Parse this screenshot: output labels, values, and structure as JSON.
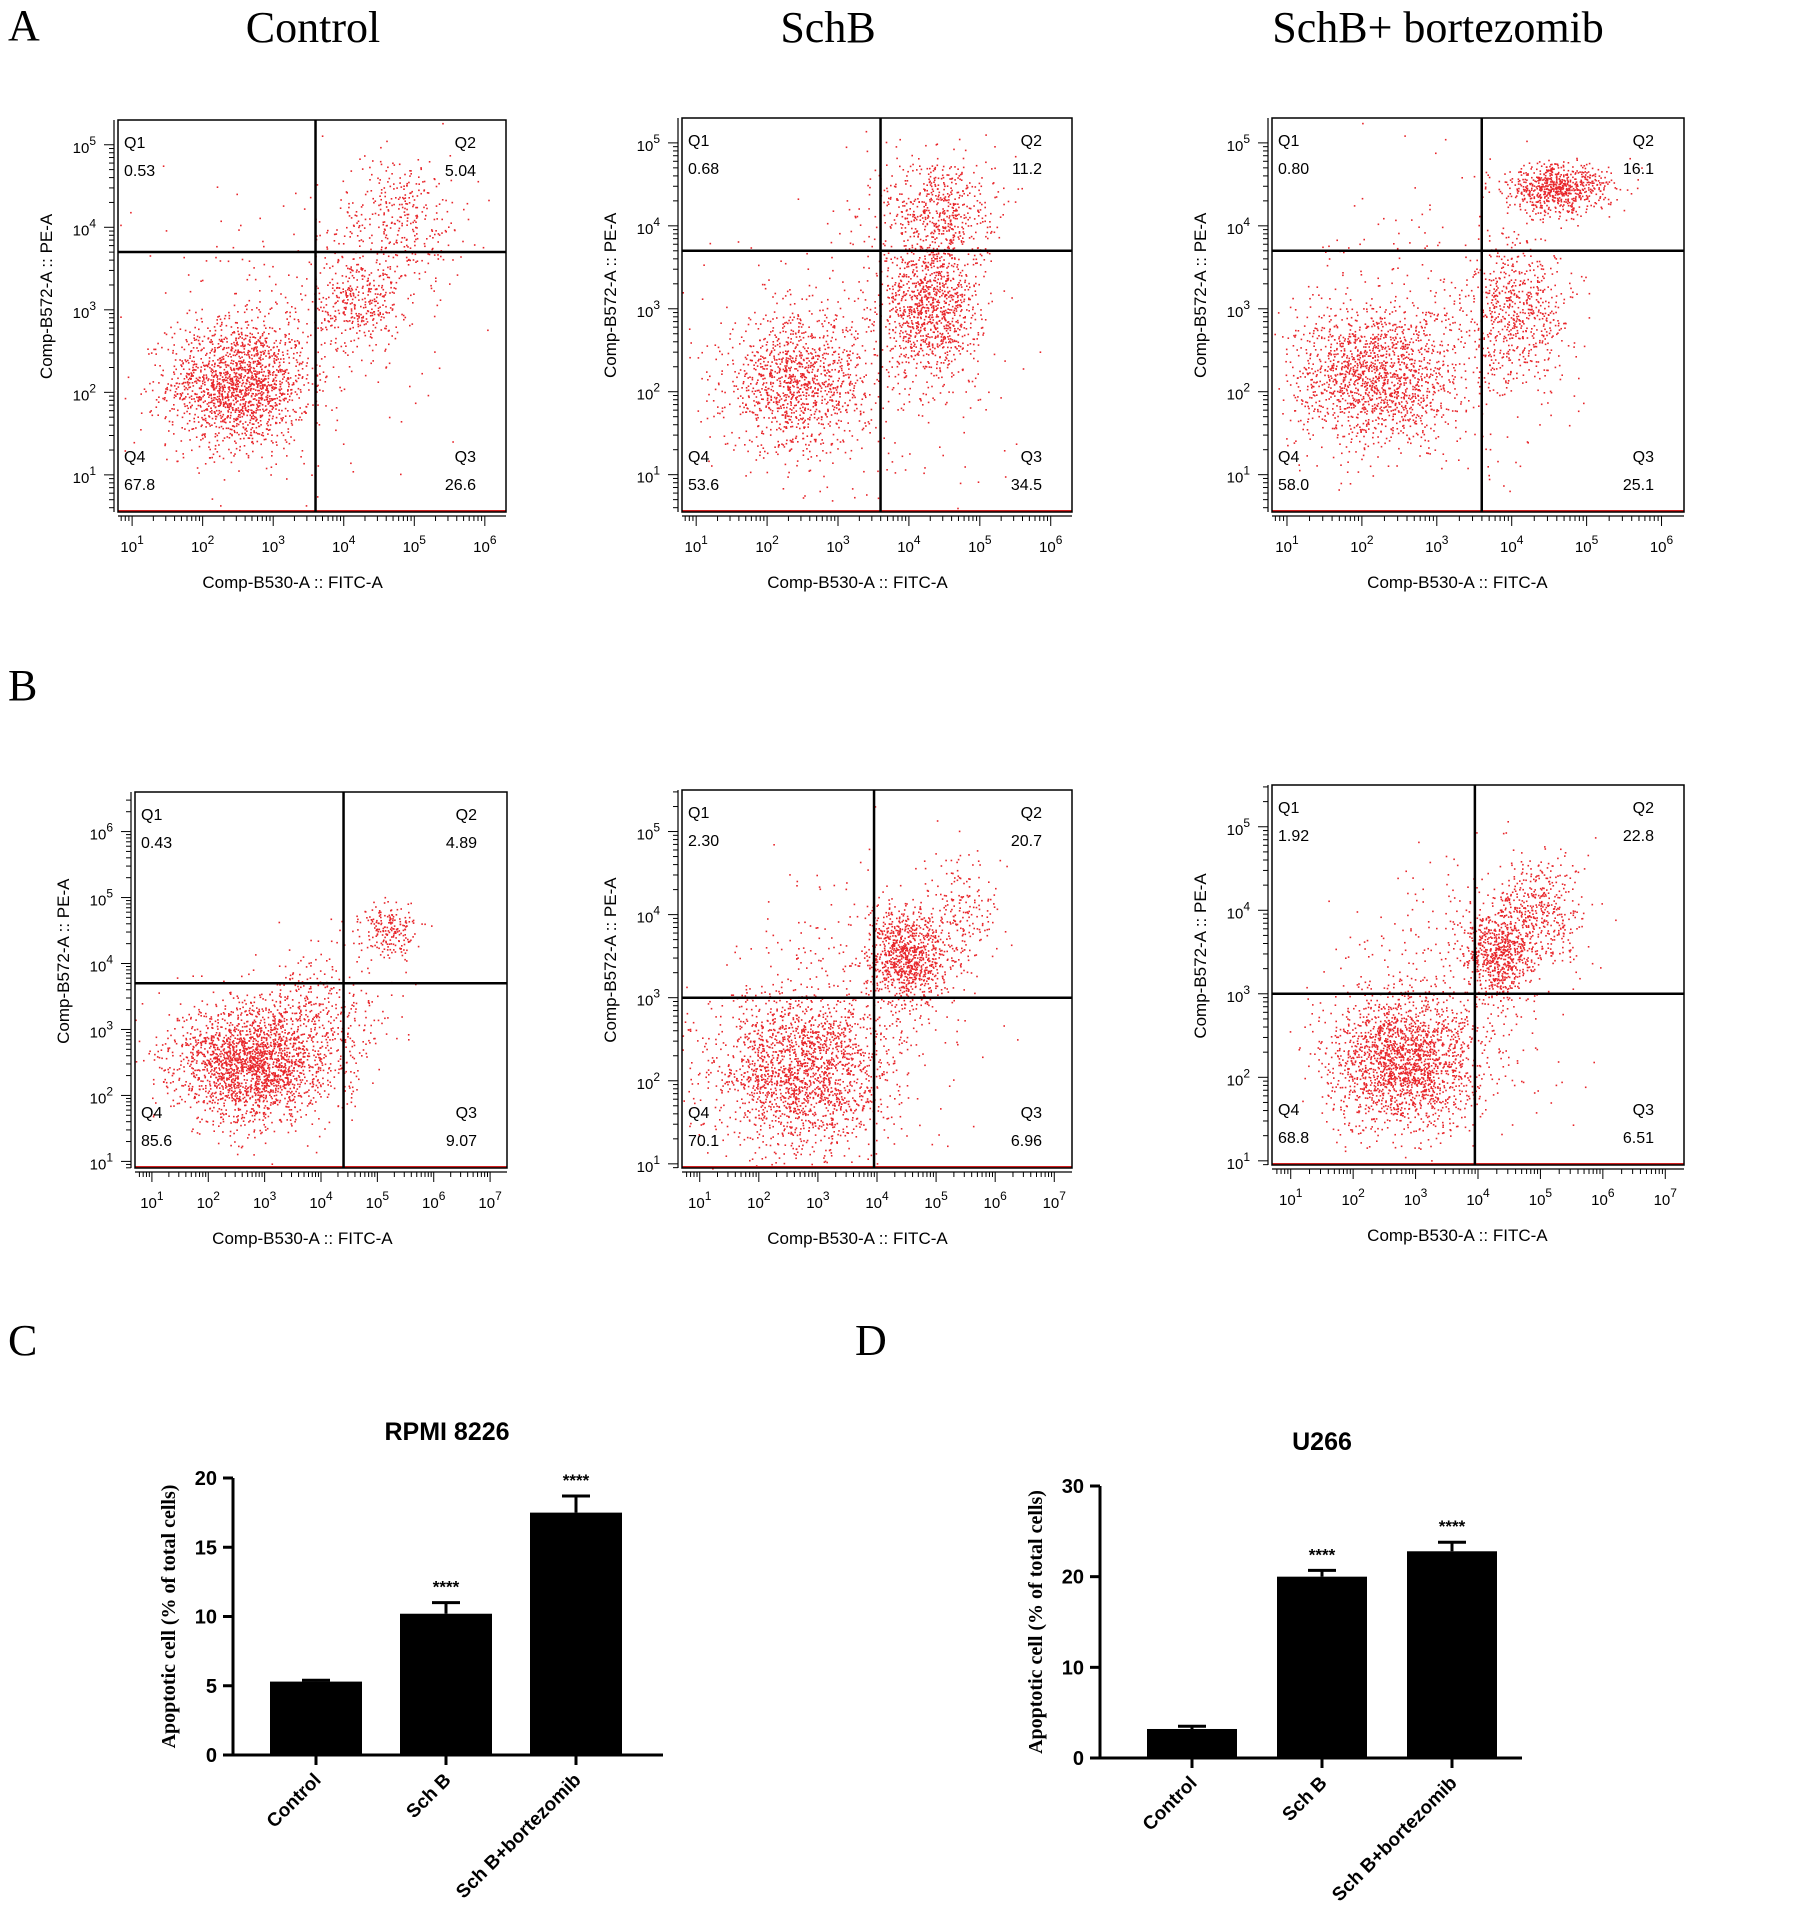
{
  "panel_letters": [
    "A",
    "B",
    "C",
    "D"
  ],
  "column_titles": [
    "Control",
    "SchB",
    "SchB+ bortezomib"
  ],
  "colors": {
    "dots": "#e8262b",
    "axis": "#000000",
    "bar": "#000000",
    "baseline_red": "#d02020"
  },
  "chart_data": [
    {
      "type": "scatter",
      "panel": "A",
      "row": 0,
      "col": 0,
      "xlabel": "Comp-B530-A :: FITC-A",
      "ylabel": "Comp-B572-A :: PE-A",
      "xlog_range": [
        0.8,
        6.3
      ],
      "ylog_range": [
        0.55,
        5.3
      ],
      "xtick_exps": [
        1,
        2,
        3,
        4,
        5,
        6
      ],
      "ytick_exps": [
        1,
        2,
        3,
        4,
        5
      ],
      "gate_x_log": 3.6,
      "gate_y_log": 3.7,
      "quadrants": [
        {
          "name": "Q1",
          "value": "0.53"
        },
        {
          "name": "Q2",
          "value": "5.04"
        },
        {
          "name": "Q3",
          "value": "26.6"
        },
        {
          "name": "Q4",
          "value": "67.8"
        }
      ],
      "clusters": [
        {
          "cx": 2.5,
          "cy": 2.1,
          "sx": 0.5,
          "sy": 0.38,
          "n": 1600
        },
        {
          "cx": 4.2,
          "cy": 3.1,
          "sx": 0.3,
          "sy": 0.3,
          "n": 350
        },
        {
          "cx": 4.8,
          "cy": 4.1,
          "sx": 0.45,
          "sy": 0.4,
          "n": 350
        },
        {
          "cx": 3.0,
          "cy": 2.6,
          "sx": 1.0,
          "sy": 0.9,
          "n": 300
        }
      ]
    },
    {
      "type": "scatter",
      "panel": "A",
      "row": 0,
      "col": 1,
      "xlabel": "Comp-B530-A :: FITC-A",
      "ylabel": "Comp-B572-A :: PE-A",
      "xlog_range": [
        0.8,
        6.3
      ],
      "ylog_range": [
        0.55,
        5.3
      ],
      "xtick_exps": [
        1,
        2,
        3,
        4,
        5,
        6
      ],
      "ytick_exps": [
        1,
        2,
        3,
        4,
        5
      ],
      "gate_x_log": 3.6,
      "gate_y_log": 3.7,
      "quadrants": [
        {
          "name": "Q1",
          "value": "0.68"
        },
        {
          "name": "Q2",
          "value": "11.2"
        },
        {
          "name": "Q3",
          "value": "34.5"
        },
        {
          "name": "Q4",
          "value": "53.6"
        }
      ],
      "clusters": [
        {
          "cx": 2.4,
          "cy": 2.1,
          "sx": 0.5,
          "sy": 0.4,
          "n": 1100
        },
        {
          "cx": 4.3,
          "cy": 3.0,
          "sx": 0.35,
          "sy": 0.4,
          "n": 1000
        },
        {
          "cx": 4.4,
          "cy": 4.2,
          "sx": 0.4,
          "sy": 0.35,
          "n": 550
        },
        {
          "cx": 3.2,
          "cy": 2.5,
          "sx": 1.0,
          "sy": 0.9,
          "n": 300
        }
      ]
    },
    {
      "type": "scatter",
      "panel": "A",
      "row": 0,
      "col": 2,
      "xlabel": "Comp-B530-A :: FITC-A",
      "ylabel": "Comp-B572-A :: PE-A",
      "xlog_range": [
        0.8,
        6.3
      ],
      "ylog_range": [
        0.55,
        5.3
      ],
      "xtick_exps": [
        1,
        2,
        3,
        4,
        5,
        6
      ],
      "ytick_exps": [
        1,
        2,
        3,
        4,
        5
      ],
      "gate_x_log": 3.6,
      "gate_y_log": 3.7,
      "quadrants": [
        {
          "name": "Q1",
          "value": "0.80"
        },
        {
          "name": "Q2",
          "value": "16.1"
        },
        {
          "name": "Q3",
          "value": "25.1"
        },
        {
          "name": "Q4",
          "value": "58.0"
        }
      ],
      "clusters": [
        {
          "cx": 2.2,
          "cy": 2.2,
          "sx": 0.55,
          "sy": 0.42,
          "n": 1500
        },
        {
          "cx": 4.1,
          "cy": 3.0,
          "sx": 0.35,
          "sy": 0.45,
          "n": 600
        },
        {
          "cx": 4.6,
          "cy": 4.45,
          "sx": 0.35,
          "sy": 0.15,
          "n": 700
        },
        {
          "cx": 3.0,
          "cy": 2.6,
          "sx": 1.0,
          "sy": 0.9,
          "n": 300
        }
      ]
    },
    {
      "type": "scatter",
      "panel": "B",
      "row": 1,
      "col": 0,
      "xlabel": "Comp-B530-A :: FITC-A",
      "ylabel": "Comp-B572-A :: PE-A",
      "xlog_range": [
        0.7,
        7.3
      ],
      "ylog_range": [
        0.9,
        6.6
      ],
      "xtick_exps": [
        1,
        2,
        3,
        4,
        5,
        6,
        7
      ],
      "ytick_exps": [
        1,
        2,
        3,
        4,
        5,
        6
      ],
      "gate_x_log": 4.4,
      "gate_y_log": 3.7,
      "quadrants": [
        {
          "name": "Q1",
          "value": "0.43"
        },
        {
          "name": "Q2",
          "value": "4.89"
        },
        {
          "name": "Q3",
          "value": "9.07"
        },
        {
          "name": "Q4",
          "value": "85.6"
        }
      ],
      "clusters": [
        {
          "cx": 2.8,
          "cy": 2.5,
          "sx": 0.7,
          "sy": 0.45,
          "n": 2200
        },
        {
          "cx": 5.2,
          "cy": 4.5,
          "sx": 0.25,
          "sy": 0.2,
          "n": 200
        },
        {
          "cx": 4.0,
          "cy": 3.3,
          "sx": 0.6,
          "sy": 0.5,
          "n": 300
        }
      ]
    },
    {
      "type": "scatter",
      "panel": "B",
      "row": 1,
      "col": 1,
      "xlabel": "Comp-B530-A :: FITC-A",
      "ylabel": "Comp-B572-A :: PE-A",
      "xlog_range": [
        0.7,
        7.3
      ],
      "ylog_range": [
        0.95,
        5.5
      ],
      "xtick_exps": [
        1,
        2,
        3,
        4,
        5,
        6,
        7
      ],
      "ytick_exps": [
        1,
        2,
        3,
        4,
        5
      ],
      "gate_x_log": 3.95,
      "gate_y_log": 3.0,
      "quadrants": [
        {
          "name": "Q1",
          "value": "2.30"
        },
        {
          "name": "Q2",
          "value": "20.7"
        },
        {
          "name": "Q3",
          "value": "6.96"
        },
        {
          "name": "Q4",
          "value": "70.1"
        }
      ],
      "clusters": [
        {
          "cx": 2.7,
          "cy": 2.1,
          "sx": 0.75,
          "sy": 0.5,
          "n": 1900
        },
        {
          "cx": 4.5,
          "cy": 3.5,
          "sx": 0.35,
          "sy": 0.28,
          "n": 900
        },
        {
          "cx": 5.4,
          "cy": 4.0,
          "sx": 0.3,
          "sy": 0.35,
          "n": 200
        },
        {
          "cx": 3.5,
          "cy": 2.8,
          "sx": 1.0,
          "sy": 0.9,
          "n": 300
        }
      ]
    },
    {
      "type": "scatter",
      "panel": "B",
      "row": 1,
      "col": 2,
      "xlabel": "Comp-B530-A :: FITC-A",
      "ylabel": "Comp-B572-A :: PE-A",
      "xlog_range": [
        0.7,
        7.3
      ],
      "ylog_range": [
        0.95,
        5.5
      ],
      "xtick_exps": [
        1,
        2,
        3,
        4,
        5,
        6,
        7
      ],
      "ytick_exps": [
        1,
        2,
        3,
        4,
        5
      ],
      "gate_x_log": 3.95,
      "gate_y_log": 3.0,
      "quadrants": [
        {
          "name": "Q1",
          "value": "1.92"
        },
        {
          "name": "Q2",
          "value": "22.8"
        },
        {
          "name": "Q3",
          "value": "6.51"
        },
        {
          "name": "Q4",
          "value": "68.8"
        }
      ],
      "clusters": [
        {
          "cx": 2.8,
          "cy": 2.2,
          "sx": 0.6,
          "sy": 0.4,
          "n": 1900
        },
        {
          "cx": 4.3,
          "cy": 3.5,
          "sx": 0.3,
          "sy": 0.3,
          "n": 700
        },
        {
          "cx": 5.0,
          "cy": 4.0,
          "sx": 0.35,
          "sy": 0.35,
          "n": 400
        },
        {
          "cx": 3.5,
          "cy": 2.8,
          "sx": 1.0,
          "sy": 0.9,
          "n": 300
        }
      ]
    },
    {
      "type": "bar",
      "panel": "C",
      "title": "RPMI 8226",
      "ylabel": "Apoptotic cell (% of total cells)",
      "categories": [
        "Control",
        "Sch B",
        "Sch B+bortezomib"
      ],
      "values": [
        5.3,
        10.2,
        17.5
      ],
      "errors": [
        0.1,
        0.8,
        1.2
      ],
      "significance": [
        "",
        "****",
        "****"
      ],
      "ylim": [
        0,
        20
      ],
      "yticks": [
        0,
        5,
        10,
        15,
        20
      ]
    },
    {
      "type": "bar",
      "panel": "D",
      "title": "U266",
      "ylabel": "Apoptotic cell (% of total cells)",
      "categories": [
        "Control",
        "Sch B",
        "Sch B+bortezomib"
      ],
      "values": [
        3.2,
        20.0,
        22.8
      ],
      "errors": [
        0.3,
        0.7,
        1.0
      ],
      "significance": [
        "",
        "****",
        "****"
      ],
      "ylim": [
        0,
        30
      ],
      "yticks": [
        0,
        10,
        20,
        30
      ]
    }
  ]
}
